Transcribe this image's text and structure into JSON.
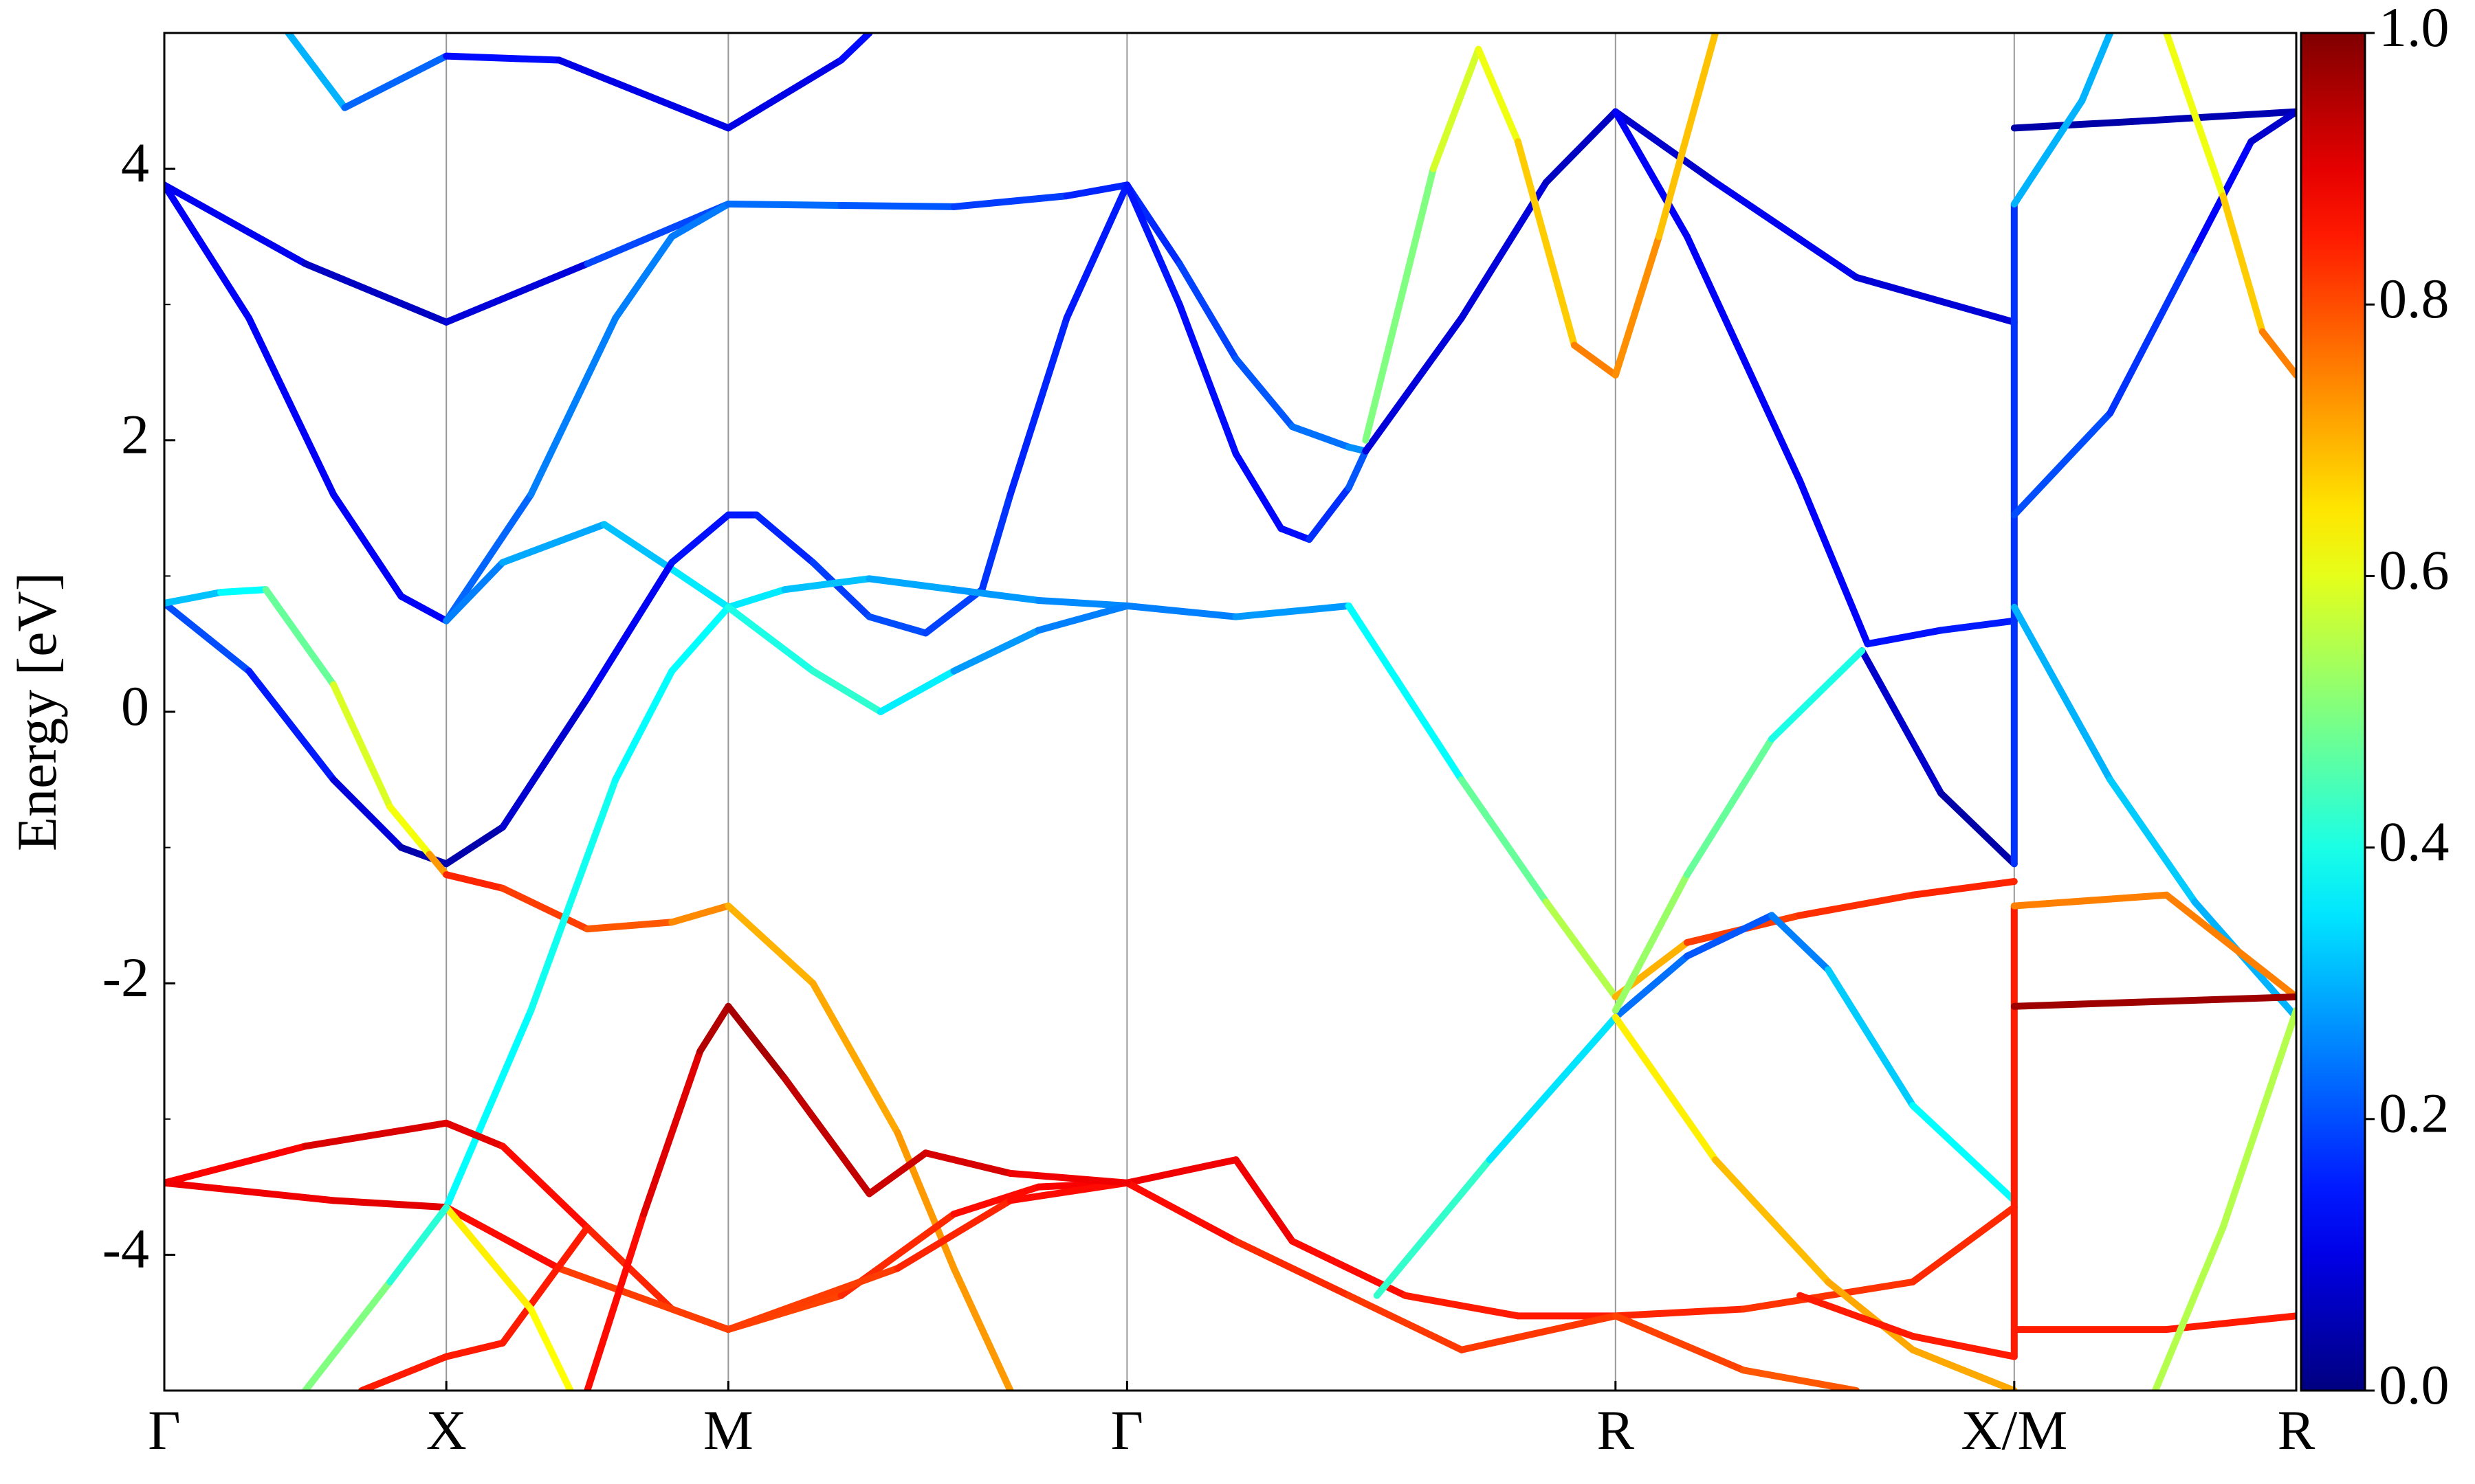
{
  "chart_data": {
    "type": "fatband",
    "ylabel": "Energy [eV]",
    "xlim": [
      0,
      3.78
    ],
    "xticks": [
      {
        "value": 0,
        "label": "Γ"
      },
      {
        "value": 0.5,
        "label": "X"
      },
      {
        "value": 1.0,
        "label": "M"
      },
      {
        "value": 1.707,
        "label": "Γ"
      },
      {
        "value": 2.573,
        "label": "R"
      },
      {
        "value": 3.28,
        "label": "X/M"
      },
      {
        "value": 3.78,
        "label": "R"
      }
    ],
    "ylim": [
      -5,
      5
    ],
    "yticks": [
      -4,
      -2,
      0,
      2,
      4
    ],
    "yticks_minor": [
      -3,
      -1,
      1,
      3
    ],
    "grid": true,
    "colormap": "jet",
    "clim": [
      0,
      1
    ],
    "cticks": [
      {
        "value": 0,
        "label": "0.0"
      },
      {
        "value": 0.2,
        "label": "0.2"
      },
      {
        "value": 0.4,
        "label": "0.4"
      },
      {
        "value": 0.6,
        "label": "0.6"
      },
      {
        "value": 0.8,
        "label": "0.8"
      },
      {
        "value": 1,
        "label": "1.0"
      }
    ],
    "series": [
      {
        "x": [
          0,
          0.25,
          0.5,
          0.75,
          1.0
        ],
        "values": [
          3.88,
          3.3,
          2.87,
          3.3,
          3.74
        ],
        "weights": [
          0.12,
          0.1,
          0.03,
          0.15,
          0.24
        ]
      },
      {
        "x": [
          0,
          0.15,
          0.3,
          0.42,
          0.5
        ],
        "values": [
          3.88,
          2.9,
          1.6,
          0.85,
          0.67
        ],
        "weights": [
          0.12,
          0.12,
          0.12,
          0.12,
          0.12
        ]
      },
      {
        "x": [
          0.5,
          0.65,
          0.8,
          0.9,
          1.0,
          1.2,
          1.4,
          1.6,
          1.707,
          1.8,
          1.9,
          2.0,
          2.1,
          2.13
        ],
        "values": [
          0.67,
          1.6,
          2.9,
          3.5,
          3.74,
          3.73,
          3.72,
          3.8,
          3.88,
          3.3,
          2.6,
          2.1,
          1.95,
          1.92
        ],
        "weights": [
          0.2,
          0.25,
          0.25,
          0.25,
          0.24,
          0.22,
          0.2,
          0.17,
          0.15,
          0.18,
          0.2,
          0.22,
          0.25,
          0.28
        ]
      },
      {
        "x": [
          0.5,
          0.6,
          0.78,
          0.9,
          1.0
        ],
        "values": [
          0.67,
          1.1,
          1.38,
          1.05,
          0.77
        ],
        "weights": [
          0.22,
          0.28,
          0.3,
          0.33,
          0.38
        ]
      },
      {
        "x": [
          0,
          0.15,
          0.3,
          0.42,
          0.5,
          0.6,
          0.75,
          0.9,
          1.0,
          1.05,
          1.15,
          1.25,
          1.35,
          1.45,
          1.5,
          1.6,
          1.707,
          1.8,
          1.9,
          1.98,
          2.03,
          2.1,
          2.13
        ],
        "values": [
          0.8,
          0.3,
          -0.5,
          -1.0,
          -1.12,
          -0.85,
          0.1,
          1.1,
          1.45,
          1.45,
          1.1,
          0.7,
          0.58,
          0.9,
          1.6,
          2.9,
          3.88,
          3.0,
          1.9,
          1.35,
          1.27,
          1.65,
          1.92
        ],
        "weights": [
          0.22,
          0.18,
          0.12,
          0.06,
          0.03,
          0.06,
          0.1,
          0.13,
          0.15,
          0.15,
          0.17,
          0.2,
          0.2,
          0.18,
          0.17,
          0.15,
          0.15,
          0.14,
          0.13,
          0.13,
          0.14,
          0.2,
          0.22
        ]
      },
      {
        "x": [
          0,
          0.1,
          0.18,
          0.3,
          0.4,
          0.47,
          0.5,
          0.6,
          0.75,
          0.9,
          1.0,
          1.15,
          1.3,
          1.4,
          1.5
        ],
        "values": [
          0.8,
          0.88,
          0.9,
          0.2,
          -0.7,
          -1.05,
          -1.2,
          -1.3,
          -1.6,
          -1.55,
          -1.43,
          -2.0,
          -3.1,
          -4.1,
          -5.0
        ],
        "weights": [
          0.28,
          0.35,
          0.4,
          0.55,
          0.63,
          0.6,
          0.85,
          0.83,
          0.8,
          0.78,
          0.7,
          0.7,
          0.72,
          0.73,
          0.72
        ]
      },
      {
        "x": [
          0.5,
          0.65,
          0.8,
          0.9,
          1.0,
          1.1,
          1.25,
          1.4,
          1.55,
          1.707,
          1.9,
          2.1,
          2.3,
          2.45,
          2.573,
          2.7,
          2.9,
          3.1,
          3.28
        ],
        "values": [
          -3.65,
          -2.2,
          -0.5,
          0.3,
          0.77,
          0.9,
          0.98,
          0.9,
          0.82,
          0.78,
          0.7,
          0.78,
          -0.5,
          -1.4,
          -2.1,
          -1.7,
          -1.5,
          -1.35,
          -1.25
        ],
        "weights": [
          0.35,
          0.4,
          0.38,
          0.37,
          0.38,
          0.33,
          0.3,
          0.28,
          0.27,
          0.25,
          0.25,
          0.3,
          0.45,
          0.5,
          0.6,
          0.8,
          0.83,
          0.83,
          0.85
        ]
      },
      {
        "x": [
          1.0,
          1.15,
          1.27,
          1.4,
          1.55,
          1.707
        ],
        "values": [
          0.77,
          0.3,
          0.0,
          0.3,
          0.6,
          0.78
        ],
        "weights": [
          0.38,
          0.42,
          0.42,
          0.3,
          0.25,
          0.25
        ]
      },
      {
        "x": [
          0,
          0.25,
          0.5,
          0.6,
          0.75,
          0.9,
          1.0,
          1.2,
          1.4,
          1.55,
          1.707,
          1.9,
          2.0,
          2.2,
          2.4,
          2.573,
          2.8,
          3.1,
          3.28
        ],
        "values": [
          -3.47,
          -3.2,
          -3.03,
          -3.2,
          -3.8,
          -4.4,
          -4.55,
          -4.3,
          -3.7,
          -3.5,
          -3.47,
          -3.3,
          -3.9,
          -4.3,
          -4.45,
          -4.45,
          -4.4,
          -4.2,
          -3.65
        ],
        "weights": [
          0.85,
          0.9,
          0.92,
          0.88,
          0.85,
          0.83,
          0.8,
          0.82,
          0.85,
          0.88,
          0.88,
          0.9,
          0.88,
          0.85,
          0.85,
          0.85,
          0.83,
          0.82,
          0.85
        ]
      },
      {
        "x": [
          0,
          0.3,
          0.5,
          0.7,
          1.0,
          1.3,
          1.5,
          1.707,
          1.9,
          2.1,
          2.3,
          2.573,
          2.8,
          3.0
        ],
        "values": [
          -3.47,
          -3.6,
          -3.65,
          -4.1,
          -4.55,
          -4.1,
          -3.6,
          -3.47,
          -3.9,
          -4.3,
          -4.7,
          -4.45,
          -4.85,
          -5.0
        ],
        "weights": [
          0.88,
          0.9,
          0.9,
          0.83,
          0.8,
          0.83,
          0.85,
          0.88,
          0.85,
          0.82,
          0.82,
          0.82,
          0.8,
          0.78
        ]
      },
      {
        "x": [
          0.75,
          0.85,
          0.95,
          1.0,
          1.1,
          1.25,
          1.35,
          1.5,
          1.707
        ],
        "values": [
          -5.0,
          -3.7,
          -2.5,
          -2.17,
          -2.7,
          -3.55,
          -3.25,
          -3.4,
          -3.47
        ],
        "weights": [
          0.85,
          0.88,
          0.93,
          0.97,
          0.95,
          0.92,
          0.93,
          0.9,
          0.88
        ]
      },
      {
        "x": [
          0.35,
          0.5,
          0.6,
          0.75
        ],
        "values": [
          -5.0,
          -4.75,
          -4.65,
          -3.8
        ],
        "weights": [
          0.85,
          0.85,
          0.85,
          0.85
        ]
      },
      {
        "x": [
          0.5,
          0.65,
          0.72
        ],
        "values": [
          -3.65,
          -4.4,
          -5.0
        ],
        "weights": [
          0.65,
          0.63,
          0.62
        ]
      },
      {
        "x": [
          0.25,
          0.4,
          0.5
        ],
        "values": [
          -5.0,
          -4.2,
          -3.65
        ],
        "weights": [
          0.55,
          0.45,
          0.38
        ]
      },
      {
        "x": [
          0.22,
          0.32,
          0.5,
          0.7,
          1.0,
          1.2,
          1.25
        ],
        "values": [
          5.0,
          4.45,
          4.83,
          4.8,
          4.3,
          4.8,
          5.0
        ],
        "weights": [
          0.3,
          0.3,
          0.15,
          0.12,
          0.08,
          0.12,
          0.15
        ]
      },
      {
        "x": [
          2.573,
          2.75,
          3.0,
          3.28
        ],
        "values": [
          4.42,
          3.9,
          3.2,
          2.87
        ],
        "weights": [
          0.05,
          0.1,
          0.12,
          0.05
        ]
      },
      {
        "x": [
          2.13,
          2.3,
          2.45,
          2.573
        ],
        "values": [
          1.92,
          2.9,
          3.9,
          4.42
        ],
        "weights": [
          0.08,
          0.1,
          0.08,
          0.05
        ]
      },
      {
        "x": [
          2.573,
          2.7,
          2.9,
          3.02,
          3.15,
          3.28
        ],
        "values": [
          4.42,
          3.5,
          1.7,
          0.5,
          0.6,
          0.67
        ],
        "weights": [
          0.12,
          0.12,
          0.12,
          0.13,
          0.15,
          0.15
        ]
      },
      {
        "x": [
          3.01,
          3.15,
          3.28
        ],
        "values": [
          0.45,
          -0.6,
          -1.12
        ],
        "weights": [
          0.1,
          0.05,
          0.03
        ]
      },
      {
        "x": [
          2.573,
          2.7,
          2.85,
          2.95,
          3.1,
          3.28
        ],
        "values": [
          -2.25,
          -1.8,
          -1.5,
          -1.9,
          -2.9,
          -3.6
        ],
        "weights": [
          0.25,
          0.22,
          0.2,
          0.3,
          0.35,
          0.4
        ]
      },
      {
        "x": [
          2.573,
          2.7,
          2.85,
          3.01
        ],
        "values": [
          -2.2,
          -1.2,
          -0.2,
          0.45
        ],
        "weights": [
          0.55,
          0.5,
          0.45,
          0.35
        ]
      },
      {
        "x": [
          2.15,
          2.35,
          2.573
        ],
        "values": [
          -4.3,
          -3.3,
          -2.25
        ],
        "weights": [
          0.45,
          0.4,
          0.3
        ]
      },
      {
        "x": [
          2.573,
          2.75,
          2.95,
          3.1,
          3.28
        ],
        "values": [
          -2.25,
          -3.3,
          -4.2,
          -4.7,
          -5.0
        ],
        "weights": [
          0.6,
          0.68,
          0.7,
          0.72,
          0.7
        ]
      },
      {
        "x": [
          2.13,
          2.25,
          2.33,
          2.4,
          2.5,
          2.573,
          2.65,
          2.75
        ],
        "values": [
          2.0,
          4.0,
          4.88,
          4.2,
          2.7,
          2.48,
          3.5,
          5.0
        ],
        "weights": [
          0.45,
          0.55,
          0.62,
          0.6,
          0.75,
          0.75,
          0.72,
          0.65
        ]
      },
      {
        "x": [
          2.9,
          3.1,
          3.28
        ],
        "values": [
          -4.3,
          -4.6,
          -4.75
        ],
        "weights": [
          0.85,
          0.85,
          0.85
        ]
      },
      {
        "x": [
          3.28,
          3.28
        ],
        "values": [
          3.74,
          -1.12
        ],
        "weights": [
          0.2,
          0.15
        ]
      },
      {
        "x": [
          3.28,
          3.28
        ],
        "values": [
          -1.43,
          -4.75
        ],
        "weights": [
          0.85,
          0.85
        ]
      },
      {
        "x": [
          3.28,
          3.5,
          3.78
        ],
        "values": [
          4.3,
          4.35,
          4.42
        ],
        "weights": [
          0.03,
          0.05,
          0.05
        ]
      },
      {
        "x": [
          3.28,
          3.4,
          3.45
        ],
        "values": [
          3.74,
          4.5,
          5.0
        ],
        "weights": [
          0.3,
          0.3,
          0.3
        ]
      },
      {
        "x": [
          3.28,
          3.45,
          3.6,
          3.7,
          3.78
        ],
        "values": [
          1.45,
          2.2,
          3.4,
          4.2,
          4.42
        ],
        "weights": [
          0.2,
          0.2,
          0.15,
          0.1,
          0.05
        ]
      },
      {
        "x": [
          3.28,
          3.45,
          3.6,
          3.78
        ],
        "values": [
          0.77,
          -0.5,
          -1.4,
          -2.25
        ],
        "weights": [
          0.3,
          0.3,
          0.35,
          0.25
        ]
      },
      {
        "x": [
          3.28,
          3.55,
          3.78
        ],
        "values": [
          -1.43,
          -1.35,
          -2.1
        ],
        "weights": [
          0.75,
          0.75,
          0.75
        ]
      },
      {
        "x": [
          3.28,
          3.78
        ],
        "values": [
          -2.17,
          -2.1
        ],
        "weights": [
          0.97,
          0.97
        ]
      },
      {
        "x": [
          3.28,
          3.55,
          3.78
        ],
        "values": [
          -4.55,
          -4.55,
          -4.45
        ],
        "weights": [
          0.85,
          0.85,
          0.85
        ]
      },
      {
        "x": [
          3.53,
          3.65,
          3.78
        ],
        "values": [
          -5.0,
          -3.8,
          -2.2
        ],
        "weights": [
          0.55,
          0.55,
          0.55
        ]
      },
      {
        "x": [
          3.55,
          3.65,
          3.72,
          3.78
        ],
        "values": [
          5.0,
          3.8,
          2.8,
          2.48
        ],
        "weights": [
          0.62,
          0.6,
          0.75,
          0.75
        ]
      }
    ]
  }
}
